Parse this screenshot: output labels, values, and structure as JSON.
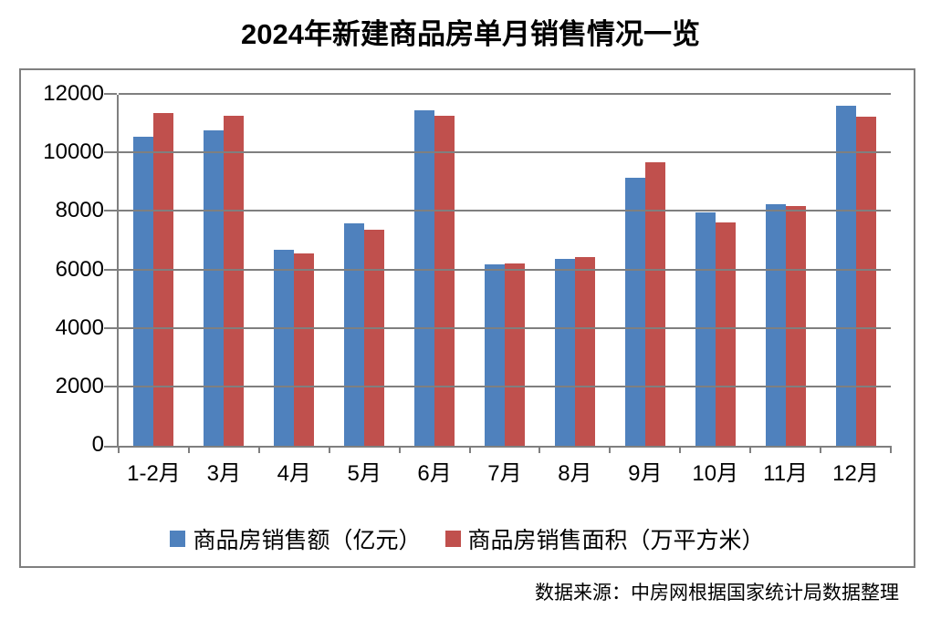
{
  "title": "2024年新建商品房单月销售情况一览",
  "source": "数据来源：中房网根据国家统计局数据整理",
  "colors": {
    "series_blue": "#4F81BD",
    "series_red": "#C0504D",
    "gridline": "#7F7F7F",
    "frame_border": "#7F7F7F",
    "text": "#000000"
  },
  "chart_data": {
    "type": "bar",
    "title": "2024年新建商品房单月销售情况一览",
    "categories": [
      "1-2月",
      "3月",
      "4月",
      "5月",
      "6月",
      "7月",
      "8月",
      "9月",
      "10月",
      "11月",
      "12月"
    ],
    "series": [
      {
        "name": "商品房销售额（亿元）",
        "color": "#4F81BD",
        "values": [
          10566,
          10789,
          6712,
          7598,
          11468,
          6197,
          6393,
          9157,
          7975,
          8270,
          11625
        ]
      },
      {
        "name": "商品房销售面积（万平方米）",
        "color": "#C0504D",
        "values": [
          11369,
          11299,
          6584,
          7390,
          11274,
          6233,
          6453,
          9682,
          7646,
          8188,
          11267
        ]
      }
    ],
    "xlabel": "",
    "ylabel": "",
    "ylim": [
      0,
      12000
    ],
    "ytick_step": 2000,
    "yticks": [
      "0",
      "2000",
      "4000",
      "6000",
      "8000",
      "10000",
      "12000"
    ],
    "grid": true,
    "legend_position": "bottom-inside"
  }
}
